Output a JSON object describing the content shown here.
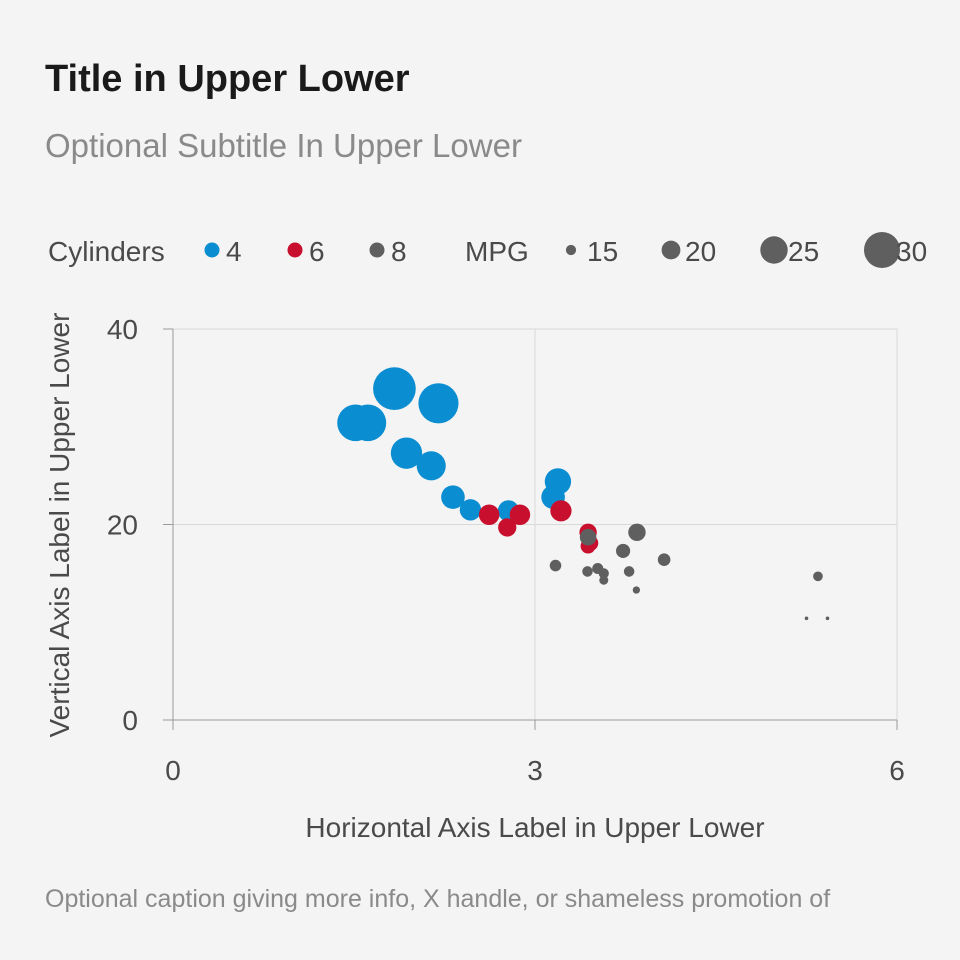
{
  "title": "Title in Upper Lower",
  "subtitle": "Optional Subtitle In Upper Lower",
  "caption": "Optional caption giving more info, X handle, or shameless promotion of",
  "colors": {
    "cyl4": "#0b8ed1",
    "cyl6": "#c8102e",
    "cyl8": "#5f5f5f",
    "grid": "#d9d9d9",
    "axis": "#9a9a9a",
    "background": "#f4f4f4"
  },
  "legend": {
    "color_title": "Cylinders",
    "color_items": [
      {
        "label": "4",
        "color": "#0b8ed1"
      },
      {
        "label": "6",
        "color": "#c8102e"
      },
      {
        "label": "8",
        "color": "#5f5f5f"
      }
    ],
    "size_title": "MPG",
    "size_items": [
      {
        "label": "15",
        "value": 15
      },
      {
        "label": "20",
        "value": 20
      },
      {
        "label": "25",
        "value": 25
      },
      {
        "label": "30",
        "value": 30
      }
    ]
  },
  "chart_data": {
    "type": "scatter",
    "xlabel": "Horizontal Axis Label in Upper Lower",
    "ylabel": "Vertical Axis Label in Upper Lower",
    "xlim": [
      0,
      6
    ],
    "ylim": [
      0,
      40
    ],
    "xticks": [
      0,
      3,
      6
    ],
    "yticks": [
      0,
      20,
      40
    ],
    "grid": true,
    "legend_position": "top",
    "size_encoding": "mpg",
    "series": [
      {
        "name": "4",
        "color": "#0b8ed1",
        "points": [
          {
            "x": 2.32,
            "y": 22.8,
            "size": 22.8
          },
          {
            "x": 3.19,
            "y": 24.4,
            "size": 24.4
          },
          {
            "x": 3.15,
            "y": 22.8,
            "size": 22.8
          },
          {
            "x": 2.2,
            "y": 32.4,
            "size": 32.4
          },
          {
            "x": 1.615,
            "y": 30.4,
            "size": 30.4
          },
          {
            "x": 1.835,
            "y": 33.9,
            "size": 33.9
          },
          {
            "x": 2.465,
            "y": 21.5,
            "size": 21.5
          },
          {
            "x": 1.935,
            "y": 27.3,
            "size": 27.3
          },
          {
            "x": 2.14,
            "y": 26.0,
            "size": 26.0
          },
          {
            "x": 1.513,
            "y": 30.4,
            "size": 30.4
          },
          {
            "x": 2.78,
            "y": 21.4,
            "size": 21.4
          }
        ]
      },
      {
        "name": "6",
        "color": "#c8102e",
        "points": [
          {
            "x": 2.62,
            "y": 21.0,
            "size": 21.0
          },
          {
            "x": 2.875,
            "y": 21.0,
            "size": 21.0
          },
          {
            "x": 3.215,
            "y": 21.4,
            "size": 21.4
          },
          {
            "x": 3.46,
            "y": 18.1,
            "size": 18.1
          },
          {
            "x": 3.44,
            "y": 19.2,
            "size": 19.2
          },
          {
            "x": 3.44,
            "y": 17.8,
            "size": 17.8
          },
          {
            "x": 2.77,
            "y": 19.7,
            "size": 19.7
          }
        ]
      },
      {
        "name": "8",
        "color": "#5f5f5f",
        "points": [
          {
            "x": 3.44,
            "y": 18.7,
            "size": 18.7
          },
          {
            "x": 3.57,
            "y": 14.3,
            "size": 14.3
          },
          {
            "x": 4.07,
            "y": 16.4,
            "size": 16.4
          },
          {
            "x": 3.73,
            "y": 17.3,
            "size": 17.3
          },
          {
            "x": 3.78,
            "y": 15.2,
            "size": 15.2
          },
          {
            "x": 5.25,
            "y": 10.4,
            "size": 10.4
          },
          {
            "x": 5.424,
            "y": 10.4,
            "size": 10.4
          },
          {
            "x": 5.345,
            "y": 14.7,
            "size": 14.7
          },
          {
            "x": 3.52,
            "y": 15.5,
            "size": 15.5
          },
          {
            "x": 3.435,
            "y": 15.2,
            "size": 15.2
          },
          {
            "x": 3.84,
            "y": 13.3,
            "size": 13.3
          },
          {
            "x": 3.845,
            "y": 19.2,
            "size": 19.2
          },
          {
            "x": 3.17,
            "y": 15.8,
            "size": 15.8
          },
          {
            "x": 3.57,
            "y": 15.0,
            "size": 15.0
          }
        ]
      }
    ]
  }
}
